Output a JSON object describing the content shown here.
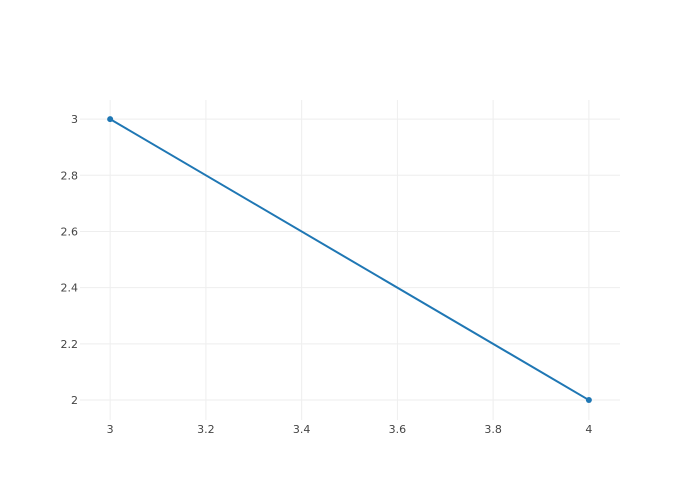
{
  "chart_data": {
    "type": "line",
    "title": "",
    "xlabel": "",
    "ylabel": "",
    "x": [
      3,
      4
    ],
    "series": [
      {
        "values": [
          3,
          2
        ],
        "mode": "lines+markers",
        "color": "#1f77b4"
      }
    ],
    "xlim": [
      2.937,
      4.065
    ],
    "ylim": [
      1.929,
      3.068
    ],
    "xticks": [
      3,
      3.2,
      3.4,
      3.6,
      3.8,
      4
    ],
    "xtick_labels": [
      "3",
      "3.2",
      "3.4",
      "3.6",
      "3.8",
      "4"
    ],
    "yticks": [
      2,
      2.2,
      2.4,
      2.6,
      2.8,
      3
    ],
    "ytick_labels": [
      "2",
      "2.2",
      "2.4",
      "2.6",
      "2.8",
      "3"
    ],
    "grid": true,
    "legend": "none"
  }
}
